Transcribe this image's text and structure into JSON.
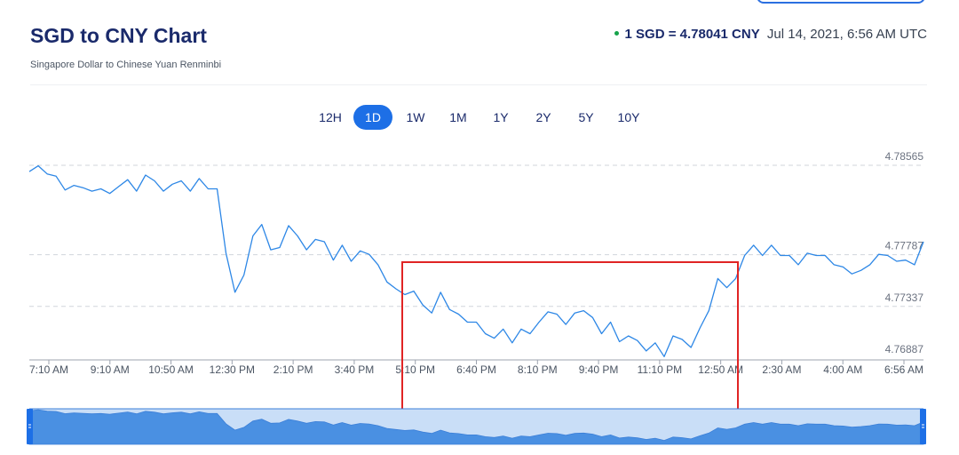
{
  "header": {
    "title": "SGD to CNY Chart",
    "subtitle": "Singapore Dollar to Chinese Yuan Renminbi",
    "rate_value": "1 SGD = 4.78041 CNY",
    "rate_time": "Jul 14, 2021, 6:56 AM UTC"
  },
  "ranges": [
    "12H",
    "1D",
    "1W",
    "1M",
    "1Y",
    "2Y",
    "5Y",
    "10Y"
  ],
  "active_range": "1D",
  "colors": {
    "line": "#2d87e6",
    "accent": "#1d6fe6",
    "highlight_box": "#e02424",
    "navigator_fill": "#4a90e2",
    "navigator_bg": "#c9def7"
  },
  "chart_data": {
    "type": "line",
    "title": "SGD to CNY Chart",
    "ylim": [
      4.76887,
      4.78565
    ],
    "y_ticks": [
      "4.78565",
      "4.77787",
      "4.77337",
      "4.76887"
    ],
    "x_ticks": [
      "7:10 AM",
      "9:10 AM",
      "10:50 AM",
      "12:30 PM",
      "2:10 PM",
      "3:40 PM",
      "5:10 PM",
      "6:40 PM",
      "8:10 PM",
      "9:40 PM",
      "11:10 PM",
      "12:50 AM",
      "2:30 AM",
      "4:00 AM",
      "6:56 AM"
    ],
    "grid": "dashed horizontal",
    "series": [
      {
        "x": [
          0,
          1,
          2,
          3,
          4,
          5,
          6,
          7,
          8,
          9,
          10,
          11,
          12,
          13,
          14,
          15,
          16,
          17,
          18,
          19,
          20,
          21,
          22,
          23,
          24,
          25,
          26,
          27,
          28,
          29,
          30,
          31,
          32,
          33,
          34,
          35,
          36,
          37,
          38,
          39,
          40,
          41,
          42,
          43,
          44,
          45,
          46,
          47,
          48,
          49,
          50,
          51,
          52,
          53,
          54,
          55,
          56,
          57,
          58,
          59,
          60,
          61,
          62,
          63,
          64,
          65,
          66,
          67,
          68,
          69,
          70,
          71,
          72,
          73,
          74,
          75,
          76,
          77,
          78,
          79,
          80,
          81,
          82,
          83,
          84,
          85,
          86,
          87,
          88,
          89,
          90,
          91,
          92,
          93,
          94,
          95,
          96,
          97,
          98,
          99,
          100
        ],
        "values": [
          4.7851,
          4.7856,
          4.7849,
          4.7847,
          4.7835,
          4.7839,
          4.7837,
          4.7834,
          4.7836,
          4.7832,
          4.7838,
          4.7844,
          4.7834,
          4.7848,
          4.7843,
          4.7834,
          4.784,
          4.7843,
          4.7834,
          4.7845,
          4.7836,
          4.7836,
          4.778,
          4.7746,
          4.7761,
          4.7795,
          4.7805,
          4.7783,
          4.7785,
          4.7804,
          4.7795,
          4.7783,
          4.7792,
          4.779,
          4.7774,
          4.7787,
          4.7773,
          4.7782,
          4.7779,
          4.777,
          4.7755,
          4.7749,
          4.7744,
          4.7747,
          4.7735,
          4.7728,
          4.7746,
          4.7731,
          4.7727,
          4.772,
          4.772,
          4.771,
          4.7706,
          4.7714,
          4.7702,
          4.7714,
          4.771,
          4.772,
          4.7729,
          4.7727,
          4.7718,
          4.7728,
          4.773,
          4.7724,
          4.771,
          4.772,
          4.7703,
          4.7708,
          4.7704,
          4.7695,
          4.7702,
          4.769,
          4.7708,
          4.7705,
          4.7698,
          4.7715,
          4.773,
          4.7758,
          4.775,
          4.7758,
          4.7778,
          4.7787,
          4.7778,
          4.7787,
          4.7778,
          4.7778,
          4.777,
          4.778,
          4.7778,
          4.7778,
          4.777,
          4.7768,
          4.7762,
          4.7765,
          4.777,
          4.7779,
          4.7778,
          4.7773,
          4.7774,
          4.777,
          4.779
        ]
      }
    ]
  }
}
